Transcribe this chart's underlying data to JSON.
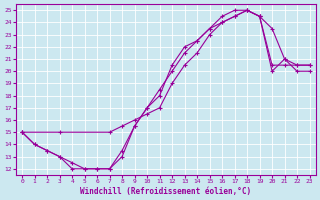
{
  "xlabel": "Windchill (Refroidissement éolien,°C)",
  "bg_color": "#cce8f0",
  "line_color": "#990099",
  "xlim": [
    -0.5,
    23.5
  ],
  "ylim": [
    11.5,
    25.5
  ],
  "xticks": [
    0,
    1,
    2,
    3,
    4,
    5,
    6,
    7,
    8,
    9,
    10,
    11,
    12,
    13,
    14,
    15,
    16,
    17,
    18,
    19,
    20,
    21,
    22,
    23
  ],
  "yticks": [
    12,
    13,
    14,
    15,
    16,
    17,
    18,
    19,
    20,
    21,
    22,
    23,
    24,
    25
  ],
  "line1_x": [
    0,
    1,
    2,
    3,
    4,
    5,
    6,
    7,
    8,
    9,
    10,
    11,
    12,
    13,
    14,
    15,
    16,
    17,
    18,
    19,
    20,
    21,
    22,
    23
  ],
  "line1_y": [
    15,
    14,
    13.5,
    13,
    12,
    12,
    12,
    12,
    13,
    15.5,
    17,
    18,
    20.5,
    22,
    22.5,
    23.5,
    24,
    24.5,
    25,
    24.5,
    20,
    21,
    20,
    20
  ],
  "line2_x": [
    0,
    3,
    7,
    8,
    9,
    10,
    11,
    12,
    13,
    14,
    15,
    16,
    17,
    18,
    19,
    20,
    21,
    22,
    23
  ],
  "line2_y": [
    15,
    15,
    15,
    15.5,
    16,
    16.5,
    17,
    19,
    20.5,
    21.5,
    23,
    24,
    24.5,
    25,
    24.5,
    20.5,
    20.5,
    20.5,
    20.5
  ],
  "line3_x": [
    0,
    1,
    2,
    3,
    4,
    5,
    6,
    7,
    8,
    9,
    10,
    11,
    12,
    13,
    14,
    15,
    16,
    17,
    18,
    19,
    20,
    21,
    22,
    23
  ],
  "line3_y": [
    15,
    14,
    13.5,
    13,
    12.5,
    12,
    12,
    12,
    13.5,
    15.5,
    17,
    18.5,
    20,
    21.5,
    22.5,
    23.5,
    24.5,
    25,
    25,
    24.5,
    23.5,
    21,
    20.5,
    20.5
  ]
}
